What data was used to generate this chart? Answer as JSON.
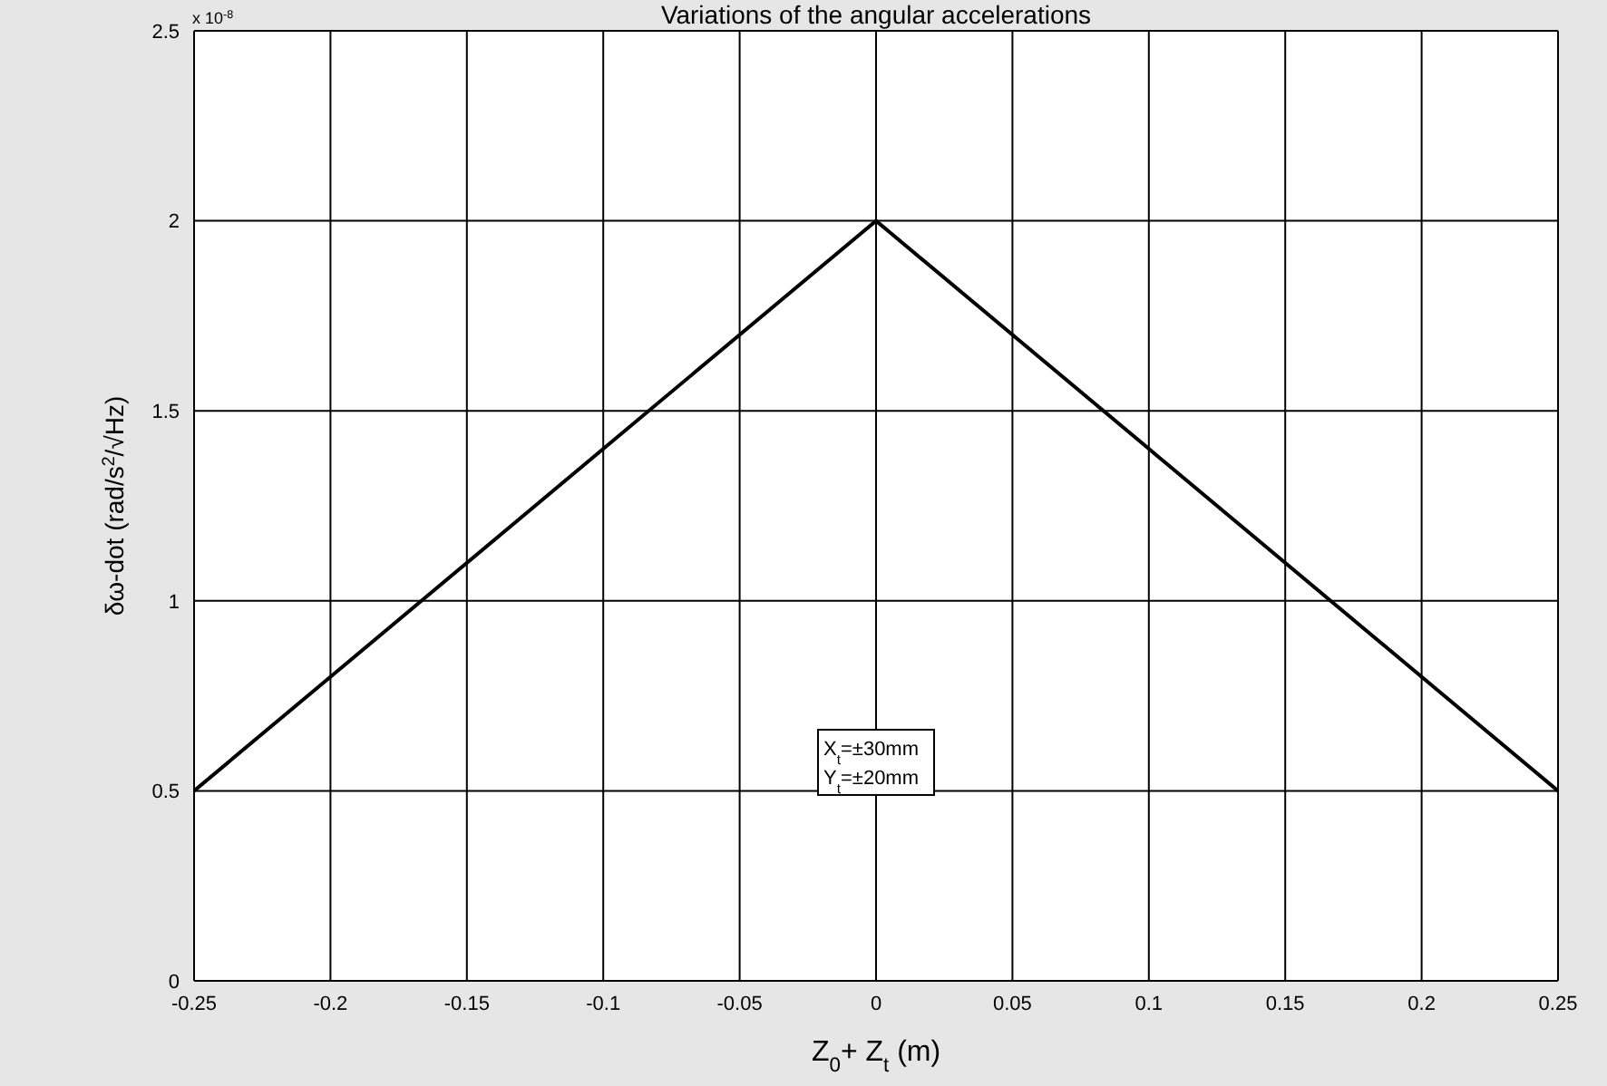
{
  "chart_data": {
    "type": "line",
    "title": "Variations of the angular accelerations",
    "xlabel": "Z$_{0}$+ Z$_{t}$ (m)",
    "ylabel": "δω-dot (rad/s$^{2}$/√Hz)",
    "x": [
      -0.25,
      0,
      0.25
    ],
    "series": [
      {
        "color": "#000000",
        "values": [
          0.5,
          2,
          0.5
        ]
      }
    ],
    "xlim": [
      -0.25,
      0.25
    ],
    "xticks": [
      -0.25,
      -0.2,
      -0.15,
      -0.1,
      -0.05,
      0,
      0.05,
      0.1,
      0.15,
      0.2,
      0.25
    ],
    "ylim": [
      0,
      2.5
    ],
    "yticks": [
      0,
      0.5,
      1,
      1.5,
      2,
      2.5
    ],
    "grid": true,
    "marker": "none",
    "line_style": "solid",
    "annotations": [
      "x 10$^{-8}$",
      "X$_{t}$=±30mm",
      "Y$_{t}$=±20mm"
    ]
  }
}
